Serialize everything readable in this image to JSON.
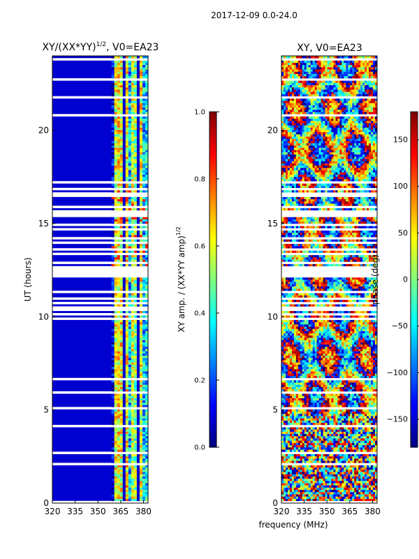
{
  "figure_title": "2017-12-09 0.0-24.0",
  "xlabel": "frequency (MHz)",
  "colors": {
    "data_gap": "#ffffff",
    "axis": "#000000"
  },
  "chart_data": [
    {
      "type": "heatmap",
      "id": "amp_panel",
      "title_main": "XY/(XX*YY)",
      "title_exp": "1/2",
      "title_tail": ", V0=EA23",
      "xlabel": "",
      "ylabel": "UT (hours)",
      "xlim": [
        320,
        383
      ],
      "ylim": [
        0,
        24
      ],
      "xticks": [
        320,
        335,
        350,
        365,
        380
      ],
      "yticks": [
        0,
        5,
        10,
        15,
        20
      ],
      "colorbar": {
        "label_main": "XY amp. / (XX*YY amp)",
        "label_exp": "1/2",
        "range": [
          0.0,
          1.0
        ],
        "ticks": [
          "0.0",
          "0.2",
          "0.4",
          "0.6",
          "0.8",
          "1.0"
        ],
        "tick_values": [
          0.0,
          0.2,
          0.4,
          0.6,
          0.8,
          1.0
        ]
      },
      "grid": false
    },
    {
      "type": "heatmap",
      "id": "phase_panel",
      "title": "XY, V0=EA23",
      "xlabel": "frequency (MHz)",
      "ylabel": "",
      "xlim": [
        320,
        383
      ],
      "ylim": [
        0,
        24
      ],
      "xticks": [
        320,
        335,
        350,
        365,
        380
      ],
      "yticks": [
        0,
        5,
        10,
        15,
        20
      ],
      "colorbar": {
        "label": "phase (deg)",
        "range": [
          -180,
          180
        ],
        "ticks": [
          "150",
          "100",
          "50",
          "0",
          "−50",
          "−100",
          "−150"
        ],
        "tick_values": [
          150,
          100,
          50,
          0,
          -50,
          -100,
          -150
        ]
      },
      "grid": false
    }
  ]
}
